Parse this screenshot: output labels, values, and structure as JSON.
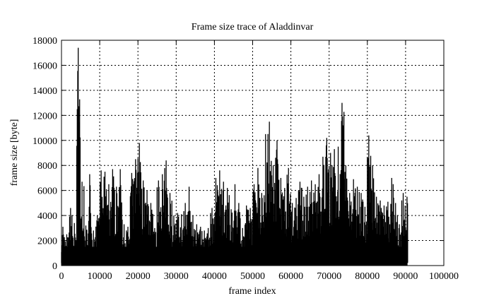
{
  "chart_data": {
    "type": "line",
    "title": "Frame size trace of Aladdinvar",
    "xlabel": "frame index",
    "ylabel": "frame size [byte]",
    "xlim": [
      0,
      100000
    ],
    "ylim": [
      0,
      18000
    ],
    "xticks": [
      0,
      10000,
      20000,
      30000,
      40000,
      50000,
      60000,
      70000,
      80000,
      90000,
      100000
    ],
    "yticks": [
      0,
      2000,
      4000,
      6000,
      8000,
      10000,
      12000,
      14000,
      16000,
      18000
    ],
    "grid": true,
    "color": "#000000",
    "series": [
      {
        "x_start": 0,
        "x_step": 1000,
        "x_end": 90500,
        "peak_values": [
          3100,
          2500,
          4600,
          3400,
          17400,
          6700,
          3200,
          7300,
          2800,
          4000,
          7600,
          7500,
          6500,
          7700,
          6300,
          7700,
          3300,
          3100,
          7400,
          8500,
          9800,
          6800,
          6000,
          5000,
          3000,
          6800,
          7300,
          8400,
          5800,
          4000,
          4200,
          4100,
          5000,
          6300,
          4000,
          3300,
          3100,
          2800,
          3000,
          4600,
          7000,
          7600,
          6700,
          6200,
          4500,
          6500,
          5000,
          3000,
          4800,
          4600,
          6500,
          7800,
          5800,
          10500,
          11500,
          8000,
          10000,
          7000,
          6200,
          7800,
          5000,
          5400,
          6700,
          5500,
          6300,
          6800,
          6500,
          7300,
          8700,
          10200,
          9000,
          9300,
          9500,
          13000,
          8000,
          5800,
          6900,
          6300,
          5800,
          4700,
          10400,
          8000,
          5500,
          5200,
          4800,
          5100,
          7000,
          5000,
          3300,
          5800,
          5500
        ],
        "min_value": 300
      }
    ]
  }
}
